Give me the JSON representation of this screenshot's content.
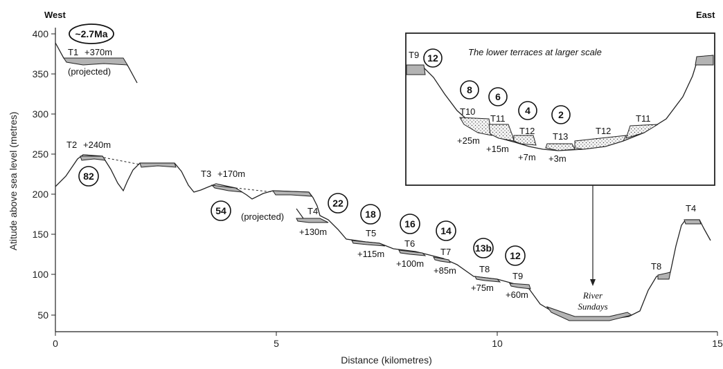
{
  "axes": {
    "x_title": "Distance (kilometres)",
    "y_title": "Atitude above sea level (metres)",
    "x_ticks": [
      "0",
      "5",
      "10",
      "15"
    ],
    "y_ticks": [
      "50",
      "100",
      "150",
      "200",
      "250",
      "300",
      "350",
      "400"
    ]
  },
  "directions": {
    "west": "West",
    "east": "East"
  },
  "terraces": [
    {
      "name": "T1",
      "height": "+370m"
    },
    {
      "name": "T2",
      "height": "+240m"
    },
    {
      "name": "T3",
      "height": "+170m"
    },
    {
      "name": "T4",
      "height": "+130m"
    },
    {
      "name": "T5",
      "height": "+115m"
    },
    {
      "name": "T6",
      "height": "+100m"
    },
    {
      "name": "T7",
      "height": "+85m"
    },
    {
      "name": "T8",
      "height": "+75m"
    },
    {
      "name": "T9",
      "height": "+60m"
    },
    {
      "name": "T4",
      "height": ""
    },
    {
      "name": "T8",
      "height": ""
    }
  ],
  "ages": [
    "~2.7Ma",
    "82",
    "54",
    "22",
    "18",
    "16",
    "14",
    "13b",
    "12"
  ],
  "notes": {
    "projected_1": "(projected)",
    "projected_2": "(projected)"
  },
  "river": {
    "line1": "River",
    "line2": "Sundays"
  },
  "inset": {
    "title": "The lower terraces at larger scale",
    "terraces": [
      {
        "name": "T9",
        "height": ""
      },
      {
        "name": "T10",
        "height": "+25m"
      },
      {
        "name": "T11",
        "height": "+15m"
      },
      {
        "name": "T12",
        "height": "+7m"
      },
      {
        "name": "T13",
        "height": "+3m"
      },
      {
        "name": "T12",
        "height": ""
      },
      {
        "name": "T11",
        "height": ""
      }
    ],
    "ages": [
      "12",
      "8",
      "6",
      "4",
      "2"
    ]
  }
}
